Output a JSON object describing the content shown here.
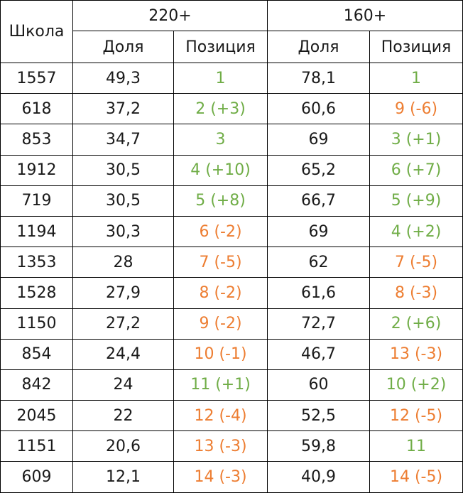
{
  "headers": {
    "school": "Школа",
    "group1": "220+",
    "group2": "160+",
    "share": "Доля",
    "position": "Позиция"
  },
  "colors": {
    "green": "#70ad47",
    "orange": "#ed7d31",
    "text": "#1a1a1a",
    "border": "#000000"
  },
  "rows": [
    {
      "school": "1557",
      "share220": "49,3",
      "pos220": "1",
      "pos220_color": "green",
      "share160": "78,1",
      "pos160": "1",
      "pos160_color": "green"
    },
    {
      "school": "618",
      "share220": "37,2",
      "pos220": "2 (+3)",
      "pos220_color": "green",
      "share160": "60,6",
      "pos160": "9 (-6)",
      "pos160_color": "orange"
    },
    {
      "school": "853",
      "share220": "34,7",
      "pos220": "3",
      "pos220_color": "green",
      "share160": "69",
      "pos160": "3 (+1)",
      "pos160_color": "green"
    },
    {
      "school": "1912",
      "share220": "30,5",
      "pos220": "4 (+10)",
      "pos220_color": "green",
      "share160": "65,2",
      "pos160": "6 (+7)",
      "pos160_color": "green"
    },
    {
      "school": "719",
      "share220": "30,5",
      "pos220": "5 (+8)",
      "pos220_color": "green",
      "share160": "66,7",
      "pos160": "5 (+9)",
      "pos160_color": "green"
    },
    {
      "school": "1194",
      "share220": "30,3",
      "pos220": "6 (-2)",
      "pos220_color": "orange",
      "share160": "69",
      "pos160": "4 (+2)",
      "pos160_color": "green"
    },
    {
      "school": "1353",
      "share220": "28",
      "pos220": "7 (-5)",
      "pos220_color": "orange",
      "share160": "62",
      "pos160": "7 (-5)",
      "pos160_color": "orange"
    },
    {
      "school": "1528",
      "share220": "27,9",
      "pos220": "8 (-2)",
      "pos220_color": "orange",
      "share160": "61,6",
      "pos160": "8 (-3)",
      "pos160_color": "orange"
    },
    {
      "school": "1150",
      "share220": "27,2",
      "pos220": "9 (-2)",
      "pos220_color": "orange",
      "share160": "72,7",
      "pos160": "2 (+6)",
      "pos160_color": "green"
    },
    {
      "school": "854",
      "share220": "24,4",
      "pos220": "10 (-1)",
      "pos220_color": "orange",
      "share160": "46,7",
      "pos160": "13 (-3)",
      "pos160_color": "orange"
    },
    {
      "school": "842",
      "share220": "24",
      "pos220": "11 (+1)",
      "pos220_color": "green",
      "share160": "60",
      "pos160": "10 (+2)",
      "pos160_color": "green"
    },
    {
      "school": "2045",
      "share220": "22",
      "pos220": "12 (-4)",
      "pos220_color": "orange",
      "share160": "52,5",
      "pos160": "12 (-5)",
      "pos160_color": "orange"
    },
    {
      "school": "1151",
      "share220": "20,6",
      "pos220": "13 (-3)",
      "pos220_color": "orange",
      "share160": "59,8",
      "pos160": "11",
      "pos160_color": "green"
    },
    {
      "school": "609",
      "share220": "12,1",
      "pos220": "14 (-3)",
      "pos220_color": "orange",
      "share160": "40,9",
      "pos160": "14 (-5)",
      "pos160_color": "orange"
    }
  ]
}
